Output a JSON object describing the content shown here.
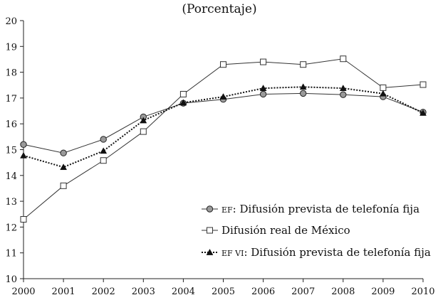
{
  "chart_data": {
    "type": "line",
    "subtitle": "(Porcentaje)",
    "x": [
      2000,
      2001,
      2002,
      2003,
      2004,
      2005,
      2006,
      2007,
      2008,
      2009,
      2010
    ],
    "ylim": [
      10,
      20
    ],
    "yticks": [
      10,
      11,
      12,
      13,
      14,
      15,
      16,
      17,
      18,
      19,
      20
    ],
    "grid": false,
    "legend_position": "bottom-right",
    "series": [
      {
        "name_prefix": "EF",
        "name_rest": ": Difusión prevista de telefonía fija",
        "marker": "circle",
        "dash": "solid",
        "color": "#333333",
        "values": [
          15.2,
          14.87,
          15.4,
          16.27,
          16.8,
          16.95,
          17.15,
          17.18,
          17.13,
          17.05,
          16.45
        ]
      },
      {
        "name_prefix": "",
        "name_rest": "Difusión real de México",
        "marker": "square",
        "dash": "solid",
        "color": "#333333",
        "values": [
          12.3,
          13.6,
          14.58,
          15.7,
          17.15,
          18.3,
          18.4,
          18.3,
          18.52,
          17.4,
          17.52
        ]
      },
      {
        "name_prefix": "EF VI",
        "name_rest": ": Difusión prevista de telefonía fija",
        "marker": "triangle",
        "dash": "dotted",
        "color": "#111111",
        "values": [
          14.77,
          14.32,
          14.95,
          16.13,
          16.82,
          17.05,
          17.38,
          17.43,
          17.38,
          17.17,
          16.42
        ]
      }
    ]
  }
}
